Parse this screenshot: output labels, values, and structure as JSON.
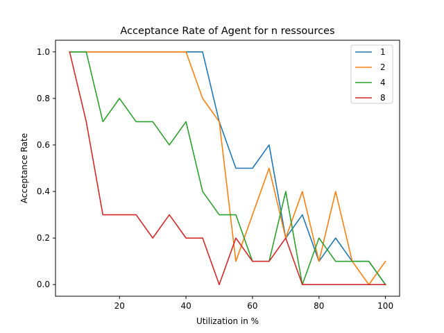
{
  "chart_data": {
    "type": "line",
    "title": "Acceptance Rate of Agent for n ressources",
    "xlabel": "Utilization in %",
    "ylabel": "Acceptance Rate",
    "xlim": [
      0.75,
      104.25
    ],
    "ylim": [
      -0.05,
      1.05
    ],
    "xticks": [
      20,
      40,
      60,
      80,
      100
    ],
    "yticks": [
      0.0,
      0.2,
      0.4,
      0.6,
      0.8,
      1.0
    ],
    "xtick_labels": [
      "20",
      "40",
      "60",
      "80",
      "100"
    ],
    "ytick_labels": [
      "0.0",
      "0.2",
      "0.4",
      "0.6",
      "0.8",
      "1.0"
    ],
    "grid": false,
    "legend_position": "top-right",
    "x": [
      5,
      10,
      15,
      20,
      25,
      30,
      35,
      40,
      45,
      50,
      55,
      60,
      65,
      70,
      75,
      80,
      85,
      90,
      95,
      100
    ],
    "series": [
      {
        "name": "1",
        "color": "#1f77b4",
        "values": [
          1.0,
          1.0,
          1.0,
          1.0,
          1.0,
          1.0,
          1.0,
          1.0,
          1.0,
          0.7,
          0.5,
          0.5,
          0.6,
          0.2,
          0.3,
          0.1,
          0.2,
          0.1,
          0.1,
          0.0
        ]
      },
      {
        "name": "2",
        "color": "#ff7f0e",
        "values": [
          1.0,
          1.0,
          1.0,
          1.0,
          1.0,
          1.0,
          1.0,
          1.0,
          0.8,
          0.7,
          0.1,
          0.3,
          0.5,
          0.2,
          0.4,
          0.1,
          0.4,
          0.1,
          0.0,
          0.1
        ]
      },
      {
        "name": "4",
        "color": "#2ca02c",
        "values": [
          1.0,
          1.0,
          0.7,
          0.8,
          0.7,
          0.7,
          0.6,
          0.7,
          0.4,
          0.3,
          0.3,
          0.1,
          0.1,
          0.4,
          0.0,
          0.2,
          0.1,
          0.1,
          0.1,
          0.0
        ]
      },
      {
        "name": "8",
        "color": "#d62728",
        "values": [
          1.0,
          0.7,
          0.3,
          0.3,
          0.3,
          0.2,
          0.3,
          0.2,
          0.2,
          0.0,
          0.2,
          0.1,
          0.1,
          0.2,
          0.0,
          0.0,
          0.0,
          0.0,
          0.0,
          0.0
        ]
      }
    ]
  }
}
